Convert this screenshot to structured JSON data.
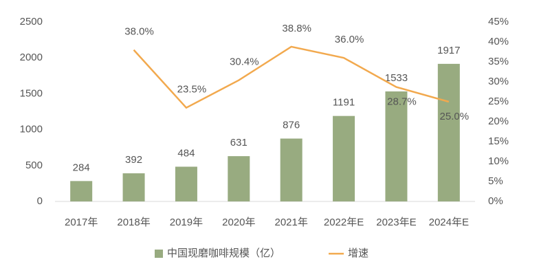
{
  "chart_data": {
    "type": "bar",
    "categories": [
      "2017年",
      "2018年",
      "2019年",
      "2020年",
      "2021年",
      "2022年E",
      "2023年E",
      "2024年E"
    ],
    "series": [
      {
        "name": "中国现磨咖啡规模（亿）",
        "color": "#98ab80",
        "values": [
          284,
          392,
          484,
          631,
          876,
          1191,
          1533,
          1917
        ]
      },
      {
        "name": "增速",
        "color": "#f2a94e",
        "type": "line",
        "axis": "y2",
        "values": [
          null,
          38.0,
          23.5,
          30.4,
          38.8,
          36.0,
          28.7,
          25.0
        ],
        "value_labels": [
          null,
          "38.0%",
          "23.5%",
          "30.4%",
          "38.8%",
          "36.0%",
          "28.7%",
          "25.0%"
        ]
      }
    ],
    "ylim": [
      0,
      2500
    ],
    "yticks": [
      0,
      500,
      1000,
      1500,
      2000,
      2500
    ],
    "y2lim": [
      0,
      45
    ],
    "y2ticks": [
      {
        "value": 0,
        "label": "0%"
      },
      {
        "value": 5,
        "label": "5%"
      },
      {
        "value": 10,
        "label": "10%"
      },
      {
        "value": 15,
        "label": "15%"
      },
      {
        "value": 20,
        "label": "20%"
      },
      {
        "value": 25,
        "label": "25%"
      },
      {
        "value": 30,
        "label": "30%"
      },
      {
        "value": 35,
        "label": "35%"
      },
      {
        "value": 40,
        "label": "40%"
      },
      {
        "value": 45,
        "label": "45%"
      }
    ],
    "legend": "bottom"
  }
}
